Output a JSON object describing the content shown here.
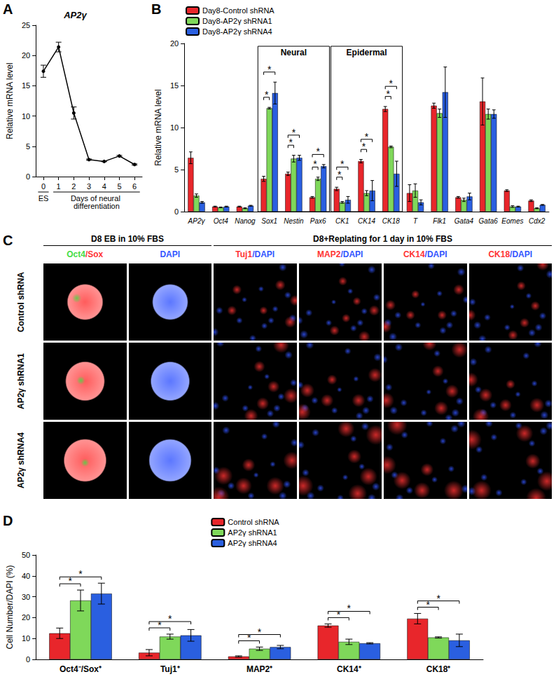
{
  "chart_data": [
    {
      "panel": "A",
      "type": "line",
      "title": "AP2γ",
      "y_label": "Relative mRNA level",
      "categories": [
        "0",
        "1",
        "2",
        "3",
        "4",
        "5",
        "6"
      ],
      "values": [
        17.4,
        21.4,
        10.5,
        2.8,
        2.5,
        3.4,
        2.0
      ],
      "errors": [
        1.0,
        0.8,
        1.0,
        0.1,
        0.05,
        0.1,
        0.1
      ],
      "color": "#000000",
      "marker": "circle",
      "x_groups": [
        {
          "label": "ES",
          "from": "0",
          "to": "0"
        },
        {
          "label": "Days of neural differentiation",
          "from": "1",
          "to": "6"
        }
      ],
      "ylim": [
        0,
        25
      ],
      "yticks": [
        0,
        5,
        10,
        15,
        20,
        25
      ],
      "grid": false
    },
    {
      "panel": "B",
      "type": "bar",
      "y_label": "Relative mRNA level",
      "categories": [
        "AP2γ",
        "Oct4",
        "Nanog",
        "Sox1",
        "Nestin",
        "Pax6",
        "CK1",
        "CK14",
        "CK18",
        "T",
        "Flk1",
        "Gata4",
        "Gata6",
        "Eomes",
        "Cdx2"
      ],
      "series": [
        {
          "name": "Day8-Control shRNA",
          "color": "#e8262b",
          "values": [
            6.4,
            0.6,
            0.6,
            3.9,
            4.5,
            1.7,
            2.7,
            6.0,
            12.2,
            2.2,
            12.6,
            1.7,
            13.1,
            2.5,
            1.3
          ],
          "errors": [
            0.7,
            0.05,
            0.05,
            0.3,
            0.2,
            0.1,
            0.2,
            0.2,
            0.3,
            1.0,
            0.3,
            0.1,
            2.8,
            0.1,
            0.1
          ]
        },
        {
          "name": "Day8-AP2γ shRNA1",
          "color": "#7fd85a",
          "values": [
            1.9,
            0.5,
            0.4,
            12.3,
            6.3,
            3.9,
            1.1,
            2.2,
            7.7,
            2.5,
            11.7,
            1.4,
            11.6,
            0.6,
            0.4
          ],
          "errors": [
            0.2,
            0.05,
            0.05,
            0.1,
            0.4,
            0.2,
            0.1,
            0.3,
            0.1,
            0.8,
            0.5,
            0.2,
            0.6,
            0.1,
            0.05
          ]
        },
        {
          "name": "Day8-AP2γ shRNA4",
          "color": "#2a5fe0",
          "values": [
            1.1,
            0.6,
            0.7,
            14.1,
            6.4,
            5.4,
            1.4,
            2.5,
            4.5,
            1.1,
            14.2,
            1.8,
            11.6,
            0.6,
            0.8
          ],
          "errors": [
            0.1,
            0.05,
            0.05,
            1.3,
            0.3,
            0.2,
            0.4,
            1.2,
            1.5,
            0.3,
            3.0,
            0.4,
            0.5,
            0.05,
            0.05
          ]
        }
      ],
      "boxes": [
        {
          "label": "Neural",
          "from": "Sox1",
          "to": "Pax6"
        },
        {
          "label": "Epidermal",
          "from": "CK1",
          "to": "CK18"
        }
      ],
      "significance": [
        {
          "category": "Sox1",
          "from": "Day8-Control shRNA",
          "to": "Day8-AP2γ shRNA1",
          "label": "*"
        },
        {
          "category": "Sox1",
          "from": "Day8-Control shRNA",
          "to": "Day8-AP2γ shRNA4",
          "label": "*"
        },
        {
          "category": "Nestin",
          "from": "Day8-Control shRNA",
          "to": "Day8-AP2γ shRNA1",
          "label": "*"
        },
        {
          "category": "Nestin",
          "from": "Day8-Control shRNA",
          "to": "Day8-AP2γ shRNA4",
          "label": "*"
        },
        {
          "category": "Pax6",
          "from": "Day8-Control shRNA",
          "to": "Day8-AP2γ shRNA1",
          "label": "*"
        },
        {
          "category": "Pax6",
          "from": "Day8-Control shRNA",
          "to": "Day8-AP2γ shRNA4",
          "label": "*"
        },
        {
          "category": "CK1",
          "from": "Day8-Control shRNA",
          "to": "Day8-AP2γ shRNA1",
          "label": "*"
        },
        {
          "category": "CK1",
          "from": "Day8-Control shRNA",
          "to": "Day8-AP2γ shRNA4",
          "label": "*"
        },
        {
          "category": "CK14",
          "from": "Day8-Control shRNA",
          "to": "Day8-AP2γ shRNA1",
          "label": "*"
        },
        {
          "category": "CK14",
          "from": "Day8-Control shRNA",
          "to": "Day8-AP2γ shRNA4",
          "label": "*"
        },
        {
          "category": "CK18",
          "from": "Day8-Control shRNA",
          "to": "Day8-AP2γ shRNA1",
          "label": "*"
        },
        {
          "category": "CK18",
          "from": "Day8-Control shRNA",
          "to": "Day8-AP2γ shRNA4",
          "label": "*"
        }
      ],
      "legend": "top-left",
      "ylim": [
        0,
        20
      ],
      "yticks": [
        0,
        5,
        10,
        15,
        20
      ],
      "grid": false
    },
    {
      "panel": "D",
      "type": "bar",
      "y_label": "Cell Number/DAPI (%)",
      "categories": [
        "Oct4⁻/Sox⁺",
        "Tuj1⁺",
        "MAP2⁺",
        "CK14⁺",
        "CK18⁺"
      ],
      "series": [
        {
          "name": "Control shRNA",
          "color": "#e8262b",
          "values": [
            12.5,
            3.2,
            1.4,
            16.2,
            19.5
          ],
          "errors": [
            2.5,
            1.5,
            0.3,
            0.8,
            2.5
          ]
        },
        {
          "name": "AP2γ shRNA1",
          "color": "#7fd85a",
          "values": [
            28.2,
            10.9,
            5.1,
            8.4,
            10.5
          ],
          "errors": [
            5.0,
            1.2,
            0.8,
            1.3,
            0.3
          ]
        },
        {
          "name": "AP2γ shRNA4",
          "color": "#2a5fe0",
          "values": [
            31.5,
            11.5,
            5.9,
            7.7,
            9.1
          ],
          "errors": [
            5.0,
            2.8,
            0.8,
            0.3,
            3.0
          ]
        }
      ],
      "significance": [
        {
          "category": "Oct4⁻/Sox⁺",
          "from": "Control shRNA",
          "to": "AP2γ shRNA1",
          "label": "*"
        },
        {
          "category": "Oct4⁻/Sox⁺",
          "from": "Control shRNA",
          "to": "AP2γ shRNA4",
          "label": "*"
        },
        {
          "category": "Tuj1⁺",
          "from": "Control shRNA",
          "to": "AP2γ shRNA1",
          "label": "*"
        },
        {
          "category": "Tuj1⁺",
          "from": "Control shRNA",
          "to": "AP2γ shRNA4",
          "label": "*"
        },
        {
          "category": "MAP2⁺",
          "from": "Control shRNA",
          "to": "AP2γ shRNA1",
          "label": "*"
        },
        {
          "category": "MAP2⁺",
          "from": "Control shRNA",
          "to": "AP2γ shRNA4",
          "label": "*"
        },
        {
          "category": "CK14⁺",
          "from": "Control shRNA",
          "to": "AP2γ shRNA1",
          "label": "*"
        },
        {
          "category": "CK14⁺",
          "from": "Control shRNA",
          "to": "AP2γ shRNA4",
          "label": "*"
        },
        {
          "category": "CK18⁺",
          "from": "Control shRNA",
          "to": "AP2γ shRNA1",
          "label": "*"
        },
        {
          "category": "CK18⁺",
          "from": "Control shRNA",
          "to": "AP2γ shRNA4",
          "label": "*"
        }
      ],
      "legend": "top",
      "ylim": [
        0,
        50
      ],
      "yticks": [
        0,
        10,
        20,
        30,
        40,
        50
      ],
      "grid": false
    }
  ],
  "image_panel": {
    "panel": "C",
    "groups": [
      {
        "label": "D8 EB in 10% FBS",
        "columns": [
          [
            {
              "text": "Oct4",
              "color": "#44dd44"
            },
            {
              "text": "/Sox",
              "color": "#ff3333"
            }
          ],
          [
            {
              "text": "DAPI",
              "color": "#3355ff"
            }
          ]
        ]
      },
      {
        "label": "D8+Replating for 1 day in 10% FBS",
        "columns": [
          [
            {
              "text": "Tuj1",
              "color": "#ff3333"
            },
            {
              "text": "/DAPI",
              "color": "#3355ff"
            }
          ],
          [
            {
              "text": "MAP2",
              "color": "#ff3333"
            },
            {
              "text": "/DAPI",
              "color": "#3355ff"
            }
          ],
          [
            {
              "text": "CK14",
              "color": "#ff3333"
            },
            {
              "text": "/DAPI",
              "color": "#3355ff"
            }
          ],
          [
            {
              "text": "CK18",
              "color": "#ff3333"
            },
            {
              "text": "/DAPI",
              "color": "#3355ff"
            }
          ]
        ]
      }
    ],
    "rows": [
      "Control shRNA",
      "AP2γ shRNA1",
      "AP2γ shRNA4"
    ]
  }
}
